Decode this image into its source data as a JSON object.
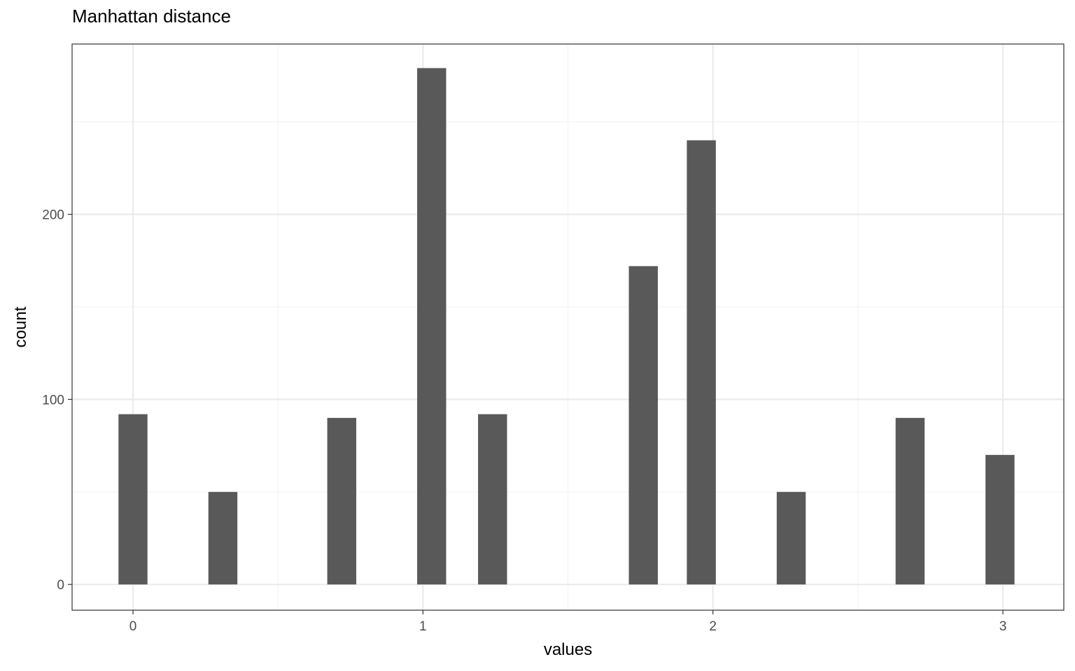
{
  "chart_data": {
    "type": "bar",
    "title": "Manhattan distance",
    "xlabel": "values",
    "ylabel": "count",
    "x": [
      0,
      0.31,
      0.72,
      1.03,
      1.24,
      1.76,
      1.96,
      2.27,
      2.68,
      2.99
    ],
    "values": [
      92,
      50,
      90,
      279,
      92,
      172,
      240,
      50,
      90,
      70
    ],
    "bar_width": 0.1,
    "xlim": [
      -0.21,
      3.21
    ],
    "ylim": [
      -13.9,
      292
    ],
    "x_ticks": [
      "0",
      "1",
      "2",
      "3"
    ],
    "x_tick_values": [
      0,
      1,
      2,
      3
    ],
    "y_ticks": [
      "0",
      "100",
      "200"
    ],
    "y_tick_values": [
      0,
      100,
      200
    ],
    "x_minor_grid": [
      0.5,
      1.5,
      2.5
    ],
    "y_minor_grid": [
      50,
      150,
      250
    ],
    "grid": true,
    "legend": "none",
    "colors": {
      "bar": "#595959",
      "grid_major": "#ebebeb",
      "grid_minor": "#f3f3f3",
      "panel_border": "#333333",
      "tick": "#333333"
    }
  }
}
